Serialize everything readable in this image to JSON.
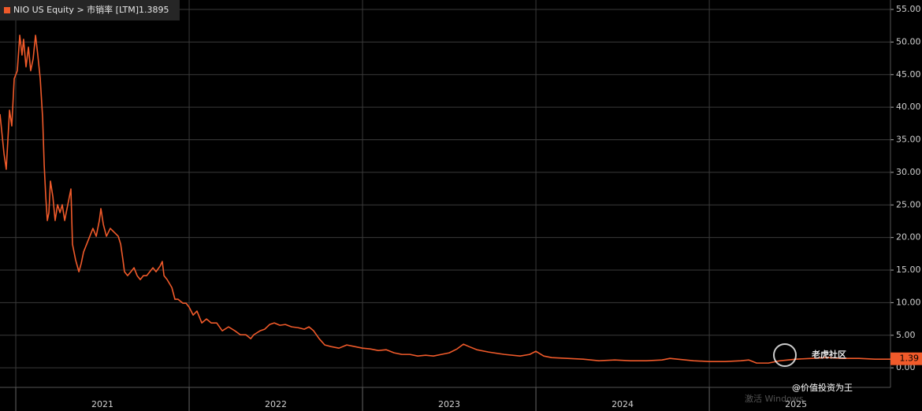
{
  "chart_data": {
    "type": "line",
    "series": [
      {
        "name": "NIO US Equity > 市销率 [LTM]",
        "legend_value": 1.3895,
        "color": "#f05a2a",
        "x": [
          2020.909,
          2020.932,
          2020.945,
          2020.964,
          2020.977,
          2020.991,
          2021.009,
          2021.023,
          2021.036,
          2021.045,
          2021.059,
          2021.073,
          2021.086,
          2021.1,
          2021.114,
          2021.127,
          2021.141,
          2021.155,
          2021.164,
          2021.173,
          2021.182,
          2021.191,
          2021.2,
          2021.214,
          2021.227,
          2021.241,
          2021.255,
          2021.268,
          2021.282,
          2021.3,
          2021.318,
          2021.327,
          2021.345,
          2021.364,
          2021.377,
          2021.391,
          2021.409,
          2021.427,
          2021.445,
          2021.464,
          2021.482,
          2021.491,
          2021.505,
          2021.523,
          2021.545,
          2021.568,
          2021.591,
          2021.605,
          2021.618,
          2021.627,
          2021.645,
          2021.664,
          2021.682,
          2021.7,
          2021.718,
          2021.736,
          2021.755,
          2021.773,
          2021.791,
          2021.809,
          2021.832,
          2021.845,
          2021.855,
          2021.873,
          2021.9,
          2021.918,
          2021.936,
          2021.964,
          2021.982,
          2022.0,
          2022.023,
          2022.045,
          2022.073,
          2022.1,
          2022.127,
          2022.159,
          2022.191,
          2022.227,
          2022.264,
          2022.295,
          2022.327,
          2022.355,
          2022.373,
          2022.409,
          2022.436,
          2022.464,
          2022.491,
          2022.523,
          2022.555,
          2022.591,
          2022.627,
          2022.664,
          2022.691,
          2022.718,
          2022.75,
          2022.782,
          2022.818,
          2022.864,
          2022.909,
          2022.955,
          2023.0,
          2023.045,
          2023.091,
          2023.136,
          2023.182,
          2023.227,
          2023.273,
          2023.318,
          2023.364,
          2023.409,
          2023.455,
          2023.5,
          2023.545,
          2023.582,
          2023.614,
          2023.659,
          2023.727,
          2023.818,
          2023.909,
          2023.964,
          2024.0,
          2024.045,
          2024.091,
          2024.182,
          2024.273,
          2024.364,
          2024.455,
          2024.545,
          2024.636,
          2024.727,
          2024.773,
          2024.818,
          2024.909,
          2025.0,
          2025.091,
          2025.182,
          2025.227,
          2025.273,
          2025.341,
          2025.409,
          2025.5,
          2025.591,
          2025.682,
          2025.773,
          2025.864,
          2025.955,
          2026.045
        ],
        "values": [
          38.94,
          32.89,
          30.47,
          39.54,
          37.12,
          44.38,
          45.59,
          51.03,
          48.0,
          50.42,
          46.19,
          49.21,
          45.59,
          47.4,
          51.03,
          48.0,
          44.38,
          38.33,
          31.08,
          26.24,
          22.61,
          23.82,
          28.66,
          26.24,
          22.61,
          25.03,
          23.82,
          25.03,
          22.61,
          25.03,
          27.45,
          18.98,
          16.57,
          14.75,
          15.96,
          17.78,
          18.98,
          20.19,
          21.4,
          20.19,
          22.61,
          24.43,
          22.01,
          20.19,
          21.4,
          20.8,
          20.19,
          18.98,
          16.57,
          14.75,
          14.15,
          14.75,
          15.36,
          14.15,
          13.54,
          14.15,
          14.15,
          14.75,
          15.36,
          14.75,
          15.6,
          16.32,
          14.15,
          13.54,
          12.33,
          10.52,
          10.52,
          9.92,
          9.92,
          9.31,
          8.1,
          8.71,
          6.89,
          7.5,
          6.89,
          6.89,
          5.68,
          6.29,
          5.68,
          5.08,
          5.08,
          4.47,
          5.08,
          5.68,
          5.93,
          6.65,
          6.89,
          6.53,
          6.65,
          6.29,
          6.17,
          5.93,
          6.29,
          5.68,
          4.47,
          3.51,
          3.26,
          3.02,
          3.51,
          3.26,
          3.02,
          2.9,
          2.66,
          2.78,
          2.3,
          2.06,
          2.06,
          1.81,
          1.93,
          1.81,
          2.06,
          2.3,
          2.9,
          3.63,
          3.26,
          2.78,
          2.42,
          2.06,
          1.81,
          2.06,
          2.54,
          1.81,
          1.57,
          1.45,
          1.33,
          1.09,
          1.21,
          1.09,
          1.09,
          1.21,
          1.45,
          1.33,
          1.09,
          0.97,
          0.97,
          1.09,
          1.21,
          0.73,
          0.73,
          1.09,
          1.33,
          1.45,
          1.57,
          1.45,
          1.45,
          1.33,
          1.33
        ],
        "last_price_tag": {
          "value": 1.3895,
          "label": "1.39"
        }
      }
    ],
    "xlim": [
      2020.909,
      2026.045
    ],
    "xticks": [
      {
        "value": 2021,
        "label": "2021"
      },
      {
        "value": 2022,
        "label": "2022"
      },
      {
        "value": 2023,
        "label": "2023"
      },
      {
        "value": 2024,
        "label": "2024"
      },
      {
        "value": 2025,
        "label": "2025"
      }
    ],
    "ylim": [
      -3,
      56.45
    ],
    "yticks": [
      {
        "value": 0,
        "label": "0.00"
      },
      {
        "value": 5,
        "label": "5.00"
      },
      {
        "value": 10,
        "label": "10.00"
      },
      {
        "value": 15,
        "label": "15.00"
      },
      {
        "value": 20,
        "label": "20.00"
      },
      {
        "value": 25,
        "label": "25.00"
      },
      {
        "value": 30,
        "label": "30.00"
      },
      {
        "value": 35,
        "label": "35.00"
      },
      {
        "value": 40,
        "label": "40.00"
      },
      {
        "value": 45,
        "label": "45.00"
      },
      {
        "value": 50,
        "label": "50.00"
      },
      {
        "value": 55,
        "label": "55.00"
      }
    ],
    "grid": true,
    "annotations": [
      "老虎社区",
      "@价值投资为王",
      "激活 Windows"
    ]
  }
}
